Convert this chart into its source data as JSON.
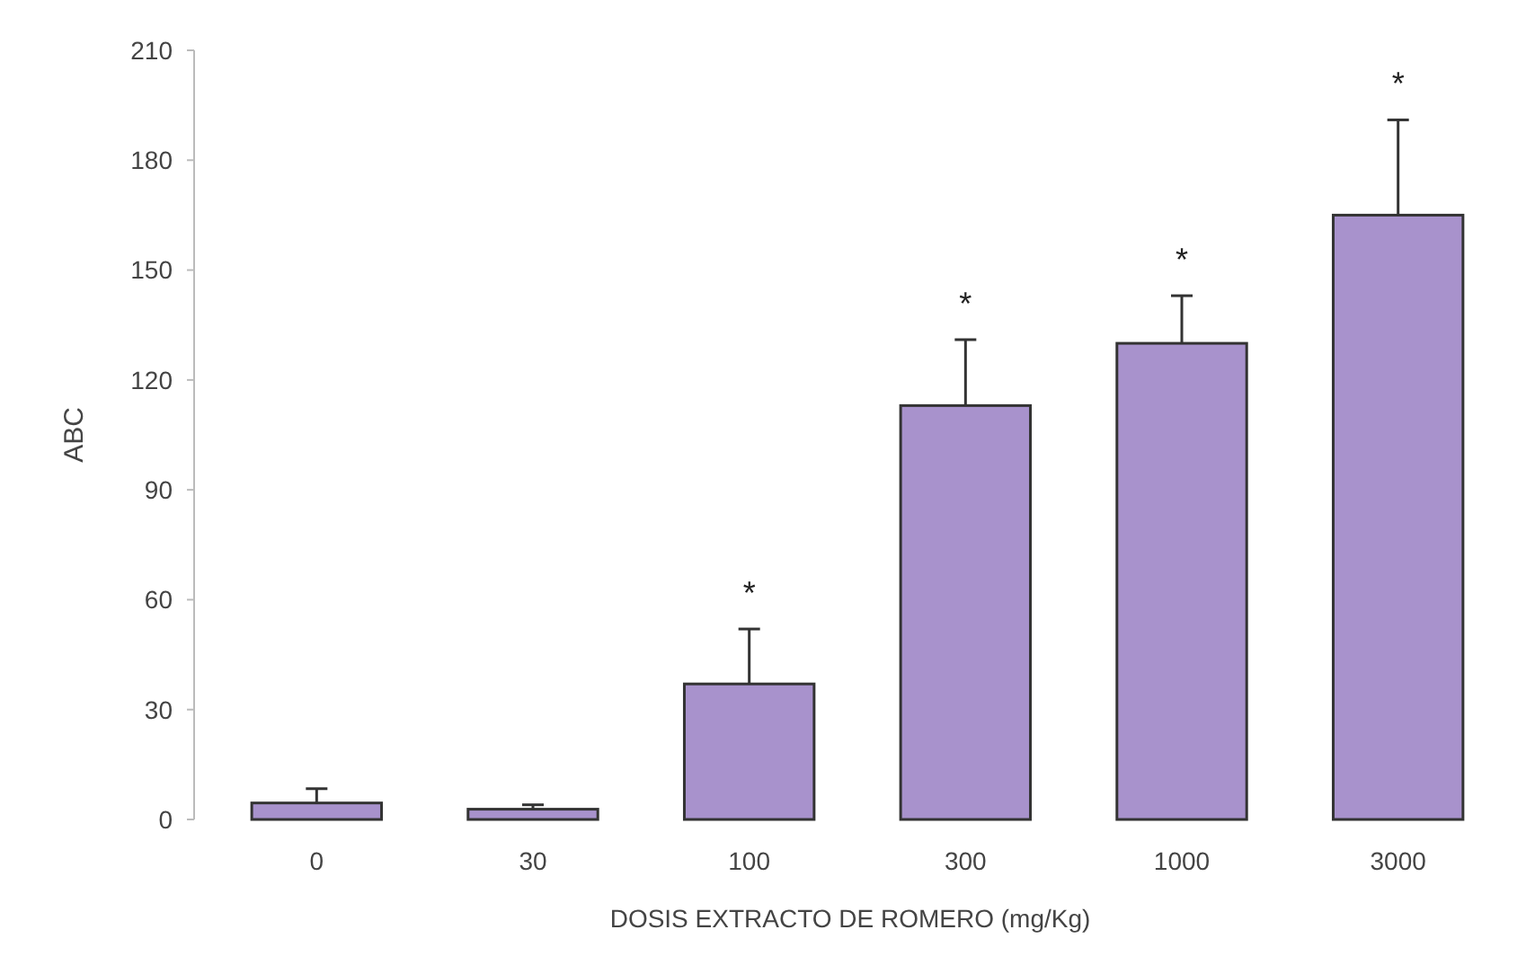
{
  "chart_data": {
    "type": "bar",
    "xlabel": "DOSIS EXTRACTO DE ROMERO (mg/Kg)",
    "ylabel": "ABC",
    "categories": [
      "0",
      "30",
      "100",
      "300",
      "1000",
      "3000"
    ],
    "values": [
      4.5,
      2.8,
      37,
      113,
      130,
      165
    ],
    "errors": [
      [
        4.5,
        8.4
      ],
      [
        2.8,
        4
      ],
      [
        37,
        52
      ],
      [
        113,
        131
      ],
      [
        130,
        143
      ],
      [
        165,
        191
      ]
    ],
    "color": "#a892cc",
    "ylim": [
      0,
      210
    ],
    "yticks": [
      0,
      30,
      60,
      90,
      120,
      150,
      180,
      210
    ],
    "annotations": [
      "*",
      "*",
      "*",
      "*"
    ]
  }
}
